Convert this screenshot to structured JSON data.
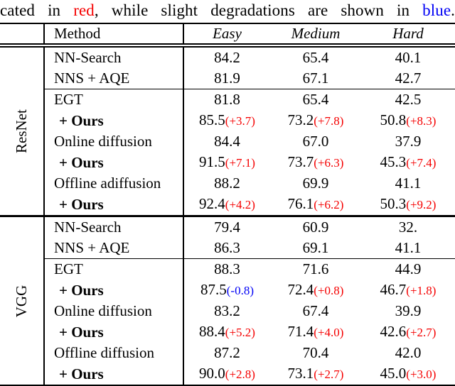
{
  "caption": {
    "prefix": "cated in ",
    "red_word": "red",
    "middle": ", while slight degradations are shown in ",
    "blue_word": "blue",
    "suffix": "."
  },
  "colors": {
    "red": "#f50000",
    "blue": "#0000f5"
  },
  "table": {
    "header": {
      "method": "Method",
      "cols": [
        "Easy",
        "Medium",
        "Hard"
      ]
    },
    "groups": [
      {
        "label": "ResNet",
        "rows": [
          {
            "method": "NN-Search",
            "bold": false,
            "cells": [
              {
                "v": "84.2"
              },
              {
                "v": "65.4"
              },
              {
                "v": "40.1"
              }
            ]
          },
          {
            "method": "NNS + AQE",
            "bold": false,
            "cells": [
              {
                "v": "81.9"
              },
              {
                "v": "67.1"
              },
              {
                "v": "42.7"
              }
            ]
          },
          {
            "method": "EGT",
            "bold": false,
            "cells": [
              {
                "v": "81.8"
              },
              {
                "v": "65.4"
              },
              {
                "v": "42.5"
              }
            ]
          },
          {
            "method": "+ Ours",
            "bold": true,
            "cells": [
              {
                "v": "85.5",
                "d": "(+3.7)",
                "dc": "red"
              },
              {
                "v": "73.2",
                "d": "(+7.8)",
                "dc": "red"
              },
              {
                "v": "50.8",
                "d": "(+8.3)",
                "dc": "red"
              }
            ]
          },
          {
            "method": "Online diffusion",
            "bold": false,
            "cells": [
              {
                "v": "84.4"
              },
              {
                "v": "67.0"
              },
              {
                "v": "37.9"
              }
            ]
          },
          {
            "method": "+ Ours",
            "bold": true,
            "cells": [
              {
                "v": "91.5",
                "d": "(+7.1)",
                "dc": "red"
              },
              {
                "v": "73.7",
                "d": "(+6.3)",
                "dc": "red"
              },
              {
                "v": "45.3",
                "d": "(+7.4)",
                "dc": "red"
              }
            ]
          },
          {
            "method": "Offline adiffusion",
            "bold": false,
            "cells": [
              {
                "v": "88.2"
              },
              {
                "v": "69.9"
              },
              {
                "v": "41.1"
              }
            ]
          },
          {
            "method": "+ Ours",
            "bold": true,
            "cells": [
              {
                "v": "92.4",
                "d": "(+4.2)",
                "dc": "red"
              },
              {
                "v": "76.1",
                "d": "(+6.2)",
                "dc": "red"
              },
              {
                "v": "50.3",
                "d": "(+9.2)",
                "dc": "red"
              }
            ]
          }
        ]
      },
      {
        "label": "VGG",
        "rows": [
          {
            "method": "NN-Search",
            "bold": false,
            "cells": [
              {
                "v": "79.4"
              },
              {
                "v": "60.9"
              },
              {
                "v": "32."
              }
            ]
          },
          {
            "method": "NNS + AQE",
            "bold": false,
            "cells": [
              {
                "v": "86.3"
              },
              {
                "v": "69.1"
              },
              {
                "v": "41.1"
              }
            ]
          },
          {
            "method": "EGT",
            "bold": false,
            "cells": [
              {
                "v": "88.3"
              },
              {
                "v": "71.6"
              },
              {
                "v": "44.9"
              }
            ]
          },
          {
            "method": "+ Ours",
            "bold": true,
            "cells": [
              {
                "v": "87.5",
                "d": "(-0.8)",
                "dc": "blue"
              },
              {
                "v": "72.4",
                "d": "(+0.8)",
                "dc": "red"
              },
              {
                "v": "46.7",
                "d": "(+1.8)",
                "dc": "red"
              }
            ]
          },
          {
            "method": "Online diffusion",
            "bold": false,
            "cells": [
              {
                "v": "83.2"
              },
              {
                "v": "67.4"
              },
              {
                "v": "39.9"
              }
            ]
          },
          {
            "method": "+ Ours",
            "bold": true,
            "cells": [
              {
                "v": "88.4",
                "d": "(+5.2)",
                "dc": "red"
              },
              {
                "v": "71.4",
                "d": "(+4.0)",
                "dc": "red"
              },
              {
                "v": "42.6",
                "d": "(+2.7)",
                "dc": "red"
              }
            ]
          },
          {
            "method": "Offline diffusion",
            "bold": false,
            "cells": [
              {
                "v": "87.2"
              },
              {
                "v": "70.4"
              },
              {
                "v": "42.0"
              }
            ]
          },
          {
            "method": "+ Ours",
            "bold": true,
            "cells": [
              {
                "v": "90.0",
                "d": "(+2.8)",
                "dc": "red"
              },
              {
                "v": "73.1",
                "d": "(+2.7)",
                "dc": "red"
              },
              {
                "v": "45.0",
                "d": "(+3.0)",
                "dc": "red"
              }
            ]
          }
        ]
      }
    ]
  }
}
